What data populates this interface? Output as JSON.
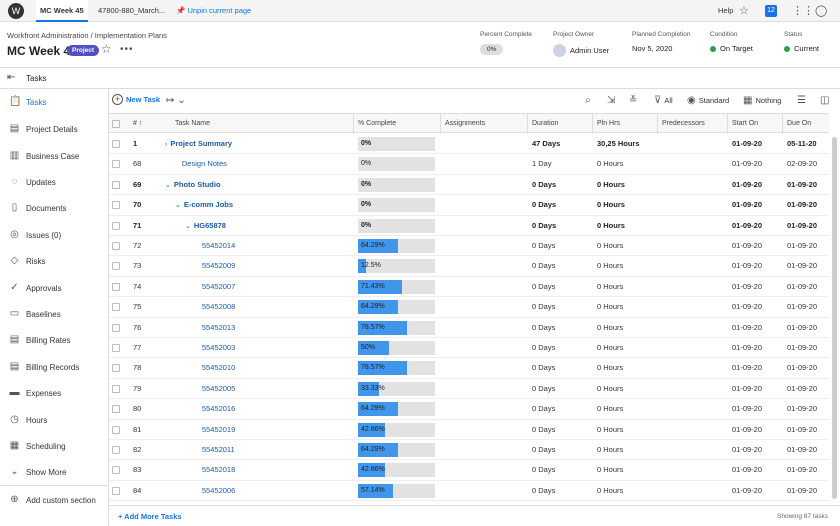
{
  "topbar": {
    "logo": "W",
    "tabs": [
      "MC Week 45",
      "47800-880_March...",
      "Unpin current page"
    ],
    "help": "Help",
    "notifications": "12"
  },
  "header": {
    "breadcrumb": "Workfront Administration  /  Implementation Plans",
    "title": "MC Week 45",
    "badge": "Project",
    "stats": [
      {
        "label": "Percent Complete",
        "value": "0%"
      },
      {
        "label": "Project Owner",
        "value": "Admin User"
      },
      {
        "label": "Planned Completion",
        "value": "Nov 5, 2020"
      },
      {
        "label": "Condition",
        "value": "On Target"
      },
      {
        "label": "Status",
        "value": "Current"
      }
    ],
    "condition_color": "#2d9d4e",
    "status_color": "#2d9d4e"
  },
  "tasks_heading": "Tasks",
  "sidebar": {
    "items": [
      {
        "label": "Tasks",
        "icon": "clipboard-icon"
      },
      {
        "label": "Project Details",
        "icon": "document-icon"
      },
      {
        "label": "Business Case",
        "icon": "briefcase-icon"
      },
      {
        "label": "Updates",
        "icon": "chat-icon"
      },
      {
        "label": "Documents",
        "icon": "file-icon"
      },
      {
        "label": "Issues (0)",
        "icon": "issue-icon"
      },
      {
        "label": "Risks",
        "icon": "warning-icon"
      },
      {
        "label": "Approvals",
        "icon": "check-circle-icon"
      },
      {
        "label": "Baselines",
        "icon": "baseline-icon"
      },
      {
        "label": "Billing Rates",
        "icon": "billing-icon"
      },
      {
        "label": "Billing Records",
        "icon": "records-icon"
      },
      {
        "label": "Expenses",
        "icon": "expenses-icon"
      },
      {
        "label": "Hours",
        "icon": "clock-icon"
      },
      {
        "label": "Scheduling",
        "icon": "calendar-icon"
      },
      {
        "label": "Show More",
        "icon": "chevron-down-icon"
      }
    ],
    "add_section": "Add custom section"
  },
  "toolbar": {
    "new_task": "New Task",
    "filter": "All",
    "view": "Standard",
    "grouping": "Nothing"
  },
  "columns": [
    "#",
    "Task Name",
    "% Complete",
    "Assignments",
    "Duration",
    "Pln Hrs",
    "Predecessors",
    "Start On",
    "Due On"
  ],
  "rows": [
    {
      "num": "1",
      "name": "Project Summary",
      "pct": "0%",
      "pctv": 0,
      "dur": "47 Days",
      "hrs": "30,25 Hours",
      "start": "01-09-20",
      "due": "05-11-20",
      "bold": true,
      "indent": 0,
      "chev": ">"
    },
    {
      "num": "68",
      "name": "Design Notes",
      "pct": "0%",
      "pctv": 0,
      "dur": "1 Day",
      "hrs": "0 Hours",
      "start": "01-09-20",
      "due": "02-09-20",
      "bold": false,
      "indent": 1,
      "chev": ""
    },
    {
      "num": "69",
      "name": "Photo Studio",
      "pct": "0%",
      "pctv": 0,
      "dur": "0 Days",
      "hrs": "0 Hours",
      "start": "01-09-20",
      "due": "01-09-20",
      "bold": true,
      "indent": 0,
      "chev": "v"
    },
    {
      "num": "70",
      "name": "E-comm Jobs",
      "pct": "0%",
      "pctv": 0,
      "dur": "0 Days",
      "hrs": "0 Hours",
      "start": "01-09-20",
      "due": "01-09-20",
      "bold": true,
      "indent": 1,
      "chev": "v"
    },
    {
      "num": "71",
      "name": "HG65878",
      "pct": "0%",
      "pctv": 0,
      "dur": "0 Days",
      "hrs": "0 Hours",
      "start": "01-09-20",
      "due": "01-09-20",
      "bold": true,
      "indent": 2,
      "chev": "v"
    },
    {
      "num": "72",
      "name": "55452014",
      "pct": "64.29%",
      "pctv": 64.29,
      "dur": "0 Days",
      "hrs": "0 Hours",
      "start": "01-09-20",
      "due": "01-09-20",
      "bold": false,
      "indent": 3,
      "chev": ""
    },
    {
      "num": "73",
      "name": "55452009",
      "pct": "12.5%",
      "pctv": 12.5,
      "dur": "0 Days",
      "hrs": "0 Hours",
      "start": "01-09-20",
      "due": "01-09-20",
      "bold": false,
      "indent": 3,
      "chev": ""
    },
    {
      "num": "74",
      "name": "55452007",
      "pct": "71.43%",
      "pctv": 71.43,
      "dur": "0 Days",
      "hrs": "0 Hours",
      "start": "01-09-20",
      "due": "01-09-20",
      "bold": false,
      "indent": 3,
      "chev": ""
    },
    {
      "num": "75",
      "name": "55452008",
      "pct": "64.29%",
      "pctv": 64.29,
      "dur": "0 Days",
      "hrs": "0 Hours",
      "start": "01-09-20",
      "due": "01-09-20",
      "bold": false,
      "indent": 3,
      "chev": ""
    },
    {
      "num": "76",
      "name": "55452013",
      "pct": "78.57%",
      "pctv": 78.57,
      "dur": "0 Days",
      "hrs": "0 Hours",
      "start": "01-09-20",
      "due": "01-09-20",
      "bold": false,
      "indent": 3,
      "chev": ""
    },
    {
      "num": "77",
      "name": "55452003",
      "pct": "50%",
      "pctv": 50,
      "dur": "0 Days",
      "hrs": "0 Hours",
      "start": "01-09-20",
      "due": "01-09-20",
      "bold": false,
      "indent": 3,
      "chev": ""
    },
    {
      "num": "78",
      "name": "55452010",
      "pct": "78.57%",
      "pctv": 78.57,
      "dur": "0 Days",
      "hrs": "0 Hours",
      "start": "01-09-20",
      "due": "01-09-20",
      "bold": false,
      "indent": 3,
      "chev": ""
    },
    {
      "num": "79",
      "name": "55452005",
      "pct": "33.33%",
      "pctv": 33.33,
      "dur": "0 Days",
      "hrs": "0 Hours",
      "start": "01-09-20",
      "due": "01-09-20",
      "bold": false,
      "indent": 3,
      "chev": ""
    },
    {
      "num": "80",
      "name": "55452016",
      "pct": "64.29%",
      "pctv": 64.29,
      "dur": "0 Days",
      "hrs": "0 Hours",
      "start": "01-09-20",
      "due": "01-09-20",
      "bold": false,
      "indent": 3,
      "chev": ""
    },
    {
      "num": "81",
      "name": "55452019",
      "pct": "42.86%",
      "pctv": 42.86,
      "dur": "0 Days",
      "hrs": "0 Hours",
      "start": "01-09-20",
      "due": "01-09-20",
      "bold": false,
      "indent": 3,
      "chev": ""
    },
    {
      "num": "82",
      "name": "55452011",
      "pct": "64.29%",
      "pctv": 64.29,
      "dur": "0 Days",
      "hrs": "0 Hours",
      "start": "01-09-20",
      "due": "01-09-20",
      "bold": false,
      "indent": 3,
      "chev": ""
    },
    {
      "num": "83",
      "name": "55452018",
      "pct": "42.86%",
      "pctv": 42.86,
      "dur": "0 Days",
      "hrs": "0 Hours",
      "start": "01-09-20",
      "due": "01-09-20",
      "bold": false,
      "indent": 3,
      "chev": ""
    },
    {
      "num": "84",
      "name": "55452006",
      "pct": "57.14%",
      "pctv": 57.14,
      "dur": "0 Days",
      "hrs": "0 Hours",
      "start": "01-09-20",
      "due": "01-09-20",
      "bold": false,
      "indent": 3,
      "chev": ""
    }
  ],
  "footer": {
    "add_more": "+ Add More Tasks",
    "showing": "Showing 87 tasks"
  }
}
